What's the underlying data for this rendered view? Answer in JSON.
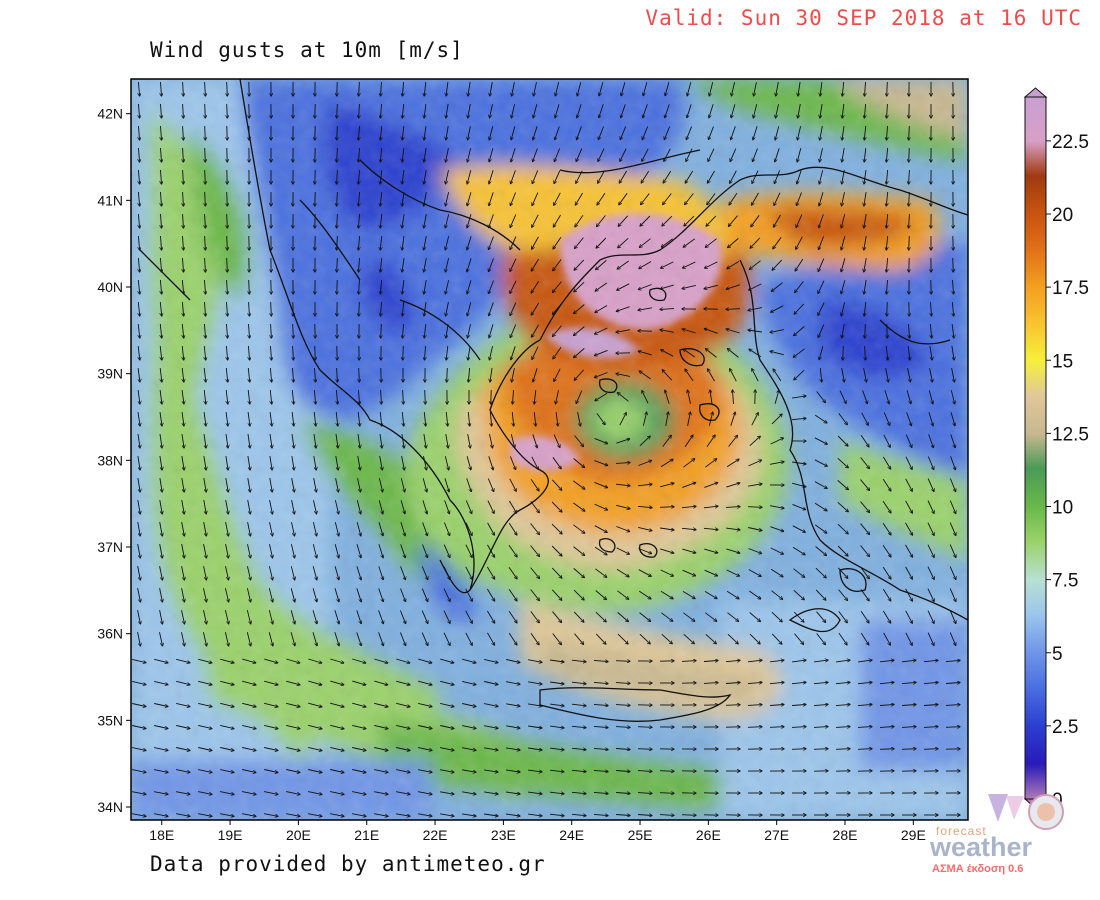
{
  "header": {
    "valid_text": "Valid: Sun 30 SEP 2018 at 16 UTC",
    "title": "Wind gusts at 10m [m/s]"
  },
  "footer": {
    "credit": "Data provided by antimeteo.gr"
  },
  "map": {
    "lat_labels": [
      "42N",
      "41N",
      "40N",
      "39N",
      "38N",
      "37N",
      "36N",
      "35N",
      "34N"
    ],
    "lon_labels": [
      "18E",
      "19E",
      "20E",
      "21E",
      "22E",
      "23E",
      "24E",
      "25E",
      "26E",
      "27E",
      "28E",
      "29E"
    ],
    "lat_range": [
      33.85,
      42.4
    ],
    "lon_range": [
      17.55,
      29.8
    ],
    "cyclone_center": {
      "lon": 24.55,
      "lat": 38.55
    }
  },
  "colorbar": {
    "labels": [
      "22.5",
      "20",
      "17.5",
      "15",
      "12.5",
      "10",
      "7.5",
      "5",
      "2.5",
      "0"
    ],
    "stops": [
      {
        "value": 0,
        "color": "#b07ab8"
      },
      {
        "value": 1.2,
        "color": "#2a1ab8"
      },
      {
        "value": 2.5,
        "color": "#2b3fd0"
      },
      {
        "value": 3.8,
        "color": "#4a6fe0"
      },
      {
        "value": 5,
        "color": "#6f95e8"
      },
      {
        "value": 6.3,
        "color": "#9cc6ec"
      },
      {
        "value": 7.5,
        "color": "#b8e0d2"
      },
      {
        "value": 8.8,
        "color": "#9ad26a"
      },
      {
        "value": 10,
        "color": "#6ab84a"
      },
      {
        "value": 11.3,
        "color": "#4a9a58"
      },
      {
        "value": 12.5,
        "color": "#c8b890"
      },
      {
        "value": 13.8,
        "color": "#e0c898"
      },
      {
        "value": 15,
        "color": "#f6f03a"
      },
      {
        "value": 16.3,
        "color": "#f8c230"
      },
      {
        "value": 17.5,
        "color": "#f4a020"
      },
      {
        "value": 18.8,
        "color": "#e07018"
      },
      {
        "value": 20,
        "color": "#c85410"
      },
      {
        "value": 21.3,
        "color": "#a03a10"
      },
      {
        "value": 22.5,
        "color": "#d8a0c8"
      },
      {
        "value": 24,
        "color": "#c8a0d0"
      }
    ]
  },
  "logo": {
    "brand_small": "forecast",
    "brand": "weather",
    "version": "ΑΣΜΑ έκδοση 0.6"
  }
}
